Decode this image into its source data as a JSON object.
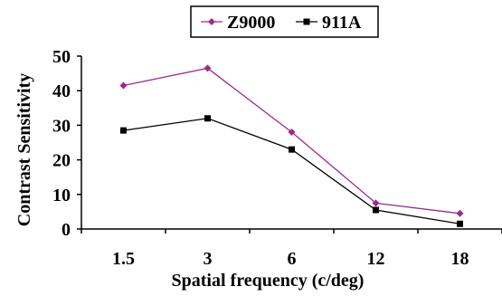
{
  "chart_data": {
    "type": "line",
    "categories": [
      "1.5",
      "3",
      "6",
      "12",
      "18"
    ],
    "series": [
      {
        "name": "Z9000",
        "values": [
          41.5,
          46.5,
          28,
          7.5,
          4.5
        ],
        "color": "#9b2b8c",
        "marker": "diamond"
      },
      {
        "name": "911A",
        "values": [
          28.5,
          32,
          23,
          5.5,
          1.5
        ],
        "color": "#000000",
        "marker": "square"
      }
    ],
    "title": "",
    "xlabel": "Spatial frequency (c/deg)",
    "ylabel": "Contrast Sensitivity",
    "ylim": [
      0,
      50
    ],
    "yticks": [
      "0",
      "10",
      "20",
      "30",
      "40",
      "50"
    ],
    "grid": false,
    "legend_position": "top-center"
  }
}
